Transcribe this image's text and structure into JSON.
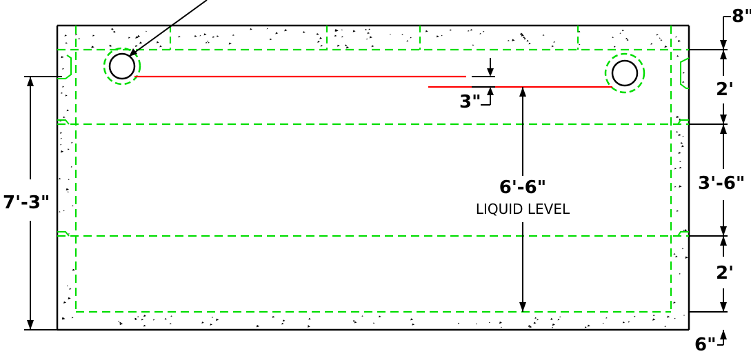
{
  "dimensions": {
    "top_thickness": "8\"",
    "upper_pipe_height": "2'",
    "middle_height": "3'-6\"",
    "lower_height": "2'",
    "bottom_thickness": "6\"",
    "overall_height": "7'-3\"",
    "pipe_drop": "3\"",
    "liquid_depth": "6'-6\""
  },
  "labels": {
    "liquid_level": "LIQUID LEVEL"
  },
  "colors": {
    "outline": "#000000",
    "hidden_lines": "#00dd00",
    "liquid_level_line": "#ff0000"
  }
}
